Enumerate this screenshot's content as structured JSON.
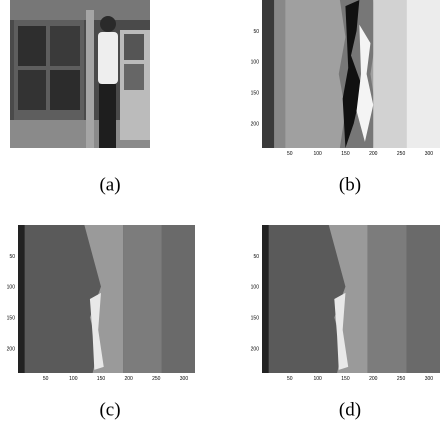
{
  "panels": [
    {
      "caption": "(a)"
    },
    {
      "caption": "(b)",
      "xticks": [
        50,
        100,
        150,
        200,
        250,
        300
      ],
      "yticks": [
        50,
        100,
        150,
        200
      ]
    },
    {
      "caption": "(c)",
      "xticks": [
        50,
        100,
        150,
        200,
        250,
        300
      ],
      "yticks": [
        50,
        100,
        150,
        200
      ]
    },
    {
      "caption": "(d)",
      "xticks": [
        50,
        100,
        150,
        200,
        250,
        300
      ],
      "yticks": [
        50,
        100,
        150,
        200
      ]
    }
  ]
}
